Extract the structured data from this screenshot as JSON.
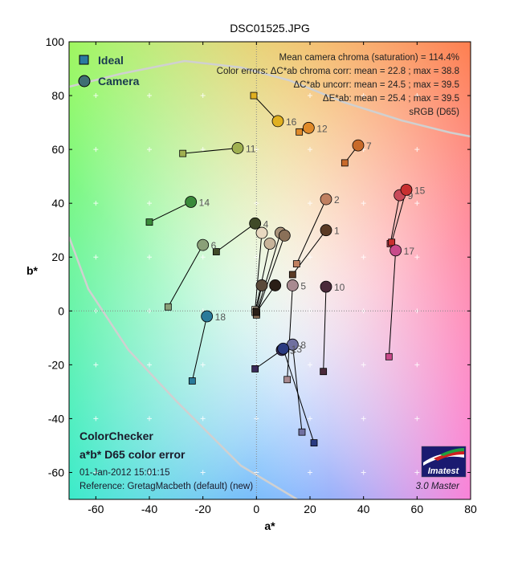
{
  "chart_data": {
    "type": "scatter",
    "title": "DSC01525.JPG",
    "xlabel": "a*",
    "ylabel": "b*",
    "xlim": [
      -70,
      80
    ],
    "ylim": [
      -70,
      100
    ],
    "xticks": [
      -60,
      -40,
      -20,
      0,
      20,
      40,
      60,
      80
    ],
    "yticks": [
      -60,
      -40,
      -20,
      0,
      20,
      40,
      60,
      80,
      100
    ],
    "legend": [
      {
        "label": "Ideal",
        "marker": "square",
        "color": "#2a7aa0"
      },
      {
        "label": "Camera",
        "marker": "circle",
        "color": "#3f6f73"
      }
    ],
    "stats_lines": [
      "Mean camera chroma (saturation) = 114.4%",
      "Color errors: ΔC*ab chroma corr:  mean = 22.8 ;  max = 38.8",
      "ΔC*ab uncorr:  mean = 24.5 ;  max = 39.5",
      "ΔE*ab:  mean = 25.4 ;  max = 39.5",
      "sRGB (D65)"
    ],
    "footer": {
      "title": "ColorChecker",
      "subtitle": "a*b* D65 color error",
      "date": "01-Jan-2012 15:01:15",
      "reference": "Reference: GretagMacbeth (default) (new)"
    },
    "logo_text": "Imatest",
    "version_text": "3.0  Master",
    "patches": [
      {
        "id": "1",
        "ideal": [
          13.5,
          13.5
        ],
        "camera": [
          26,
          30
        ],
        "color": "#5a3a24"
      },
      {
        "id": "2",
        "ideal": [
          15,
          17.5
        ],
        "camera": [
          26,
          41.5
        ],
        "color": "#c08060"
      },
      {
        "id": "3",
        "ideal": [
          -0.5,
          -21.5
        ],
        "camera": [
          9.5,
          -14.5
        ],
        "color": "#3a2a5a"
      },
      {
        "id": "4",
        "ideal": [
          -15,
          22
        ],
        "camera": [
          -0.5,
          32.5
        ],
        "color": "#404a28"
      },
      {
        "id": "5",
        "ideal": [
          11.5,
          -25.5
        ],
        "camera": [
          13.5,
          9.5
        ],
        "color": "#a88a90"
      },
      {
        "id": "6",
        "ideal": [
          -33,
          1.5
        ],
        "camera": [
          -20,
          24.5
        ],
        "color": "#8aa078"
      },
      {
        "id": "7",
        "ideal": [
          33,
          55
        ],
        "camera": [
          38,
          61.5
        ],
        "color": "#c86a2a"
      },
      {
        "id": "8",
        "ideal": [
          17,
          -45
        ],
        "camera": [
          13.5,
          -12.5
        ],
        "color": "#7070a0"
      },
      {
        "id": "9",
        "ideal": [
          50,
          25
        ],
        "camera": [
          53.5,
          43
        ],
        "color": "#c84a5a"
      },
      {
        "id": "10",
        "ideal": [
          25,
          -22.5
        ],
        "camera": [
          26,
          9
        ],
        "color": "#4a2a3a"
      },
      {
        "id": "11",
        "ideal": [
          -27.5,
          58.5
        ],
        "camera": [
          -7,
          60.5
        ],
        "color": "#a0b050"
      },
      {
        "id": "12",
        "ideal": [
          16,
          66.5
        ],
        "camera": [
          19.5,
          68
        ],
        "color": "#e08a2a"
      },
      {
        "id": "13",
        "ideal": [
          21.5,
          -49
        ],
        "camera": [
          10,
          -14
        ],
        "color": "#2a3a80"
      },
      {
        "id": "14",
        "ideal": [
          -40,
          33
        ],
        "camera": [
          -24.5,
          40.5
        ],
        "color": "#3a8a3a"
      },
      {
        "id": "15",
        "ideal": [
          50.5,
          25.5
        ],
        "camera": [
          56,
          45
        ],
        "color": "#c83030"
      },
      {
        "id": "16",
        "ideal": [
          -1,
          80
        ],
        "camera": [
          8,
          70.5
        ],
        "color": "#e0b020"
      },
      {
        "id": "17",
        "ideal": [
          49.5,
          -17
        ],
        "camera": [
          52,
          22.5
        ],
        "color": "#c84a8a"
      },
      {
        "id": "18",
        "ideal": [
          -24,
          -26
        ],
        "camera": [
          -18.5,
          -2
        ],
        "color": "#2a7a9a"
      },
      {
        "id": "",
        "ideal": [
          -0.5,
          0.5
        ],
        "camera": [
          2,
          29
        ],
        "color": "#e8d8c0"
      },
      {
        "id": "",
        "ideal": [
          -0.5,
          -0.5
        ],
        "camera": [
          5,
          25
        ],
        "color": "#c8b49a"
      },
      {
        "id": "",
        "ideal": [
          0,
          -1
        ],
        "camera": [
          9,
          29
        ],
        "color": "#a8927a"
      },
      {
        "id": "",
        "ideal": [
          0,
          -1.5
        ],
        "camera": [
          10.5,
          28
        ],
        "color": "#8a7058"
      },
      {
        "id": "",
        "ideal": [
          0,
          0
        ],
        "camera": [
          2,
          9.5
        ],
        "color": "#5a4a3a"
      },
      {
        "id": "",
        "ideal": [
          0,
          -0.5
        ],
        "camera": [
          7,
          9.5
        ],
        "color": "#2a1e16"
      }
    ]
  }
}
